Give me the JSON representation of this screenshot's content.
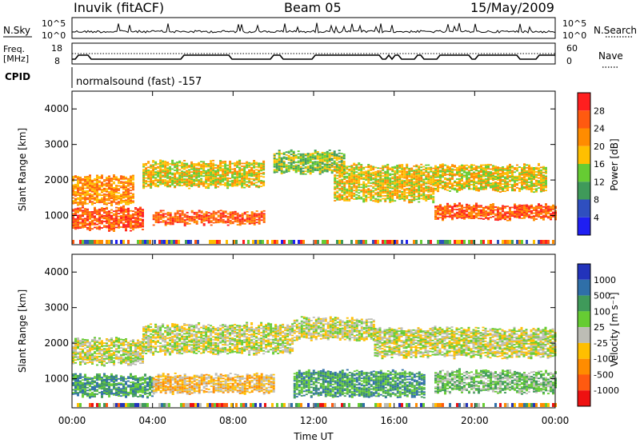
{
  "header": {
    "station": "Inuvik (fitACF)",
    "beam": "Beam 05",
    "date": "15/May/2009"
  },
  "noise_panel": {
    "left_label": "N.Sky",
    "left_ticks": [
      "10^5",
      "10^0"
    ],
    "right_ticks": [
      "10^5",
      "10^0"
    ],
    "right_label": "N.Search"
  },
  "freq_panel": {
    "left_label_line1": "Freq.",
    "left_label_line2": "[MHz]",
    "left_ticks": [
      "18",
      "8"
    ],
    "right_ticks": [
      "60",
      "0"
    ],
    "right_label": "Nave"
  },
  "cpid": {
    "label": "CPID",
    "program": "normalsound (fast) -157"
  },
  "x_axis": {
    "label": "Time UT",
    "ticks": [
      "00:00",
      "04:00",
      "08:00",
      "12:00",
      "16:00",
      "20:00",
      "00:00"
    ]
  },
  "power_colorbar": {
    "label": "Power [dB]",
    "ticks": [
      "28",
      "24",
      "20",
      "16",
      "12",
      "8",
      "4"
    ],
    "colors": [
      "#ff1f1f",
      "#ff5a10",
      "#ff8c00",
      "#ffbf00",
      "#66cc33",
      "#3f9a5a",
      "#2f4fbf",
      "#1f1ff2"
    ]
  },
  "velocity_colorbar": {
    "label": "Velocity [m s⁻¹]",
    "ticks": [
      "1000",
      "500",
      "100",
      "25",
      "-25",
      "-100",
      "-500",
      "-1000"
    ],
    "colors": [
      "#2233bb",
      "#2f6fa8",
      "#3f9a5a",
      "#66cc33",
      "#bdbdb5",
      "#ffbf00",
      "#ff8c00",
      "#ff5a10",
      "#ee1111"
    ]
  },
  "chart_data": [
    {
      "type": "heatmap",
      "name": "power",
      "ylabel": "Slant Range [km]",
      "xlabel": "Time UT",
      "ylim": [
        180,
        4500
      ],
      "xlim_hours": [
        0,
        24
      ],
      "yticks": [
        1000,
        2000,
        3000,
        4000
      ],
      "bands": [
        {
          "t0": 0.0,
          "t1": 3.0,
          "r0": 1300,
          "r1": 2100,
          "level": 5
        },
        {
          "t0": 0.0,
          "t1": 3.5,
          "r0": 600,
          "r1": 1200,
          "level": 6
        },
        {
          "t0": 3.5,
          "t1": 9.5,
          "r0": 1800,
          "r1": 2500,
          "level": 4
        },
        {
          "t0": 4.0,
          "t1": 9.5,
          "r0": 750,
          "r1": 1100,
          "level": 6
        },
        {
          "t0": 10.0,
          "t1": 13.5,
          "r0": 2200,
          "r1": 2800,
          "level": 3
        },
        {
          "t0": 13.0,
          "t1": 18.0,
          "r0": 1400,
          "r1": 2400,
          "level": 4
        },
        {
          "t0": 18.0,
          "t1": 23.5,
          "r0": 1700,
          "r1": 2400,
          "level": 4
        },
        {
          "t0": 18.0,
          "t1": 24.0,
          "r0": 900,
          "r1": 1300,
          "level": 6
        }
      ]
    },
    {
      "type": "heatmap",
      "name": "velocity",
      "ylabel": "Slant Range [km]",
      "xlabel": "Time UT",
      "ylim": [
        180,
        4500
      ],
      "xlim_hours": [
        0,
        24
      ],
      "yticks": [
        1000,
        2000,
        3000,
        4000
      ],
      "bands": [
        {
          "t0": 0.0,
          "t1": 3.5,
          "r0": 1400,
          "r1": 2100,
          "level": 4
        },
        {
          "t0": 3.5,
          "t1": 11.0,
          "r0": 1700,
          "r1": 2500,
          "level": 4
        },
        {
          "t0": 11.0,
          "t1": 15.0,
          "r0": 2100,
          "r1": 2700,
          "level": 4
        },
        {
          "t0": 15.0,
          "t1": 24.0,
          "r0": 1600,
          "r1": 2400,
          "level": 4
        },
        {
          "t0": 0.0,
          "t1": 4.0,
          "r0": 500,
          "r1": 1100,
          "level": 6
        },
        {
          "t0": 4.0,
          "t1": 10.0,
          "r0": 600,
          "r1": 1100,
          "level": 3
        },
        {
          "t0": 11.0,
          "t1": 17.5,
          "r0": 500,
          "r1": 1200,
          "level": 6
        },
        {
          "t0": 18.0,
          "t1": 24.0,
          "r0": 600,
          "r1": 1200,
          "level": 5
        }
      ]
    }
  ]
}
